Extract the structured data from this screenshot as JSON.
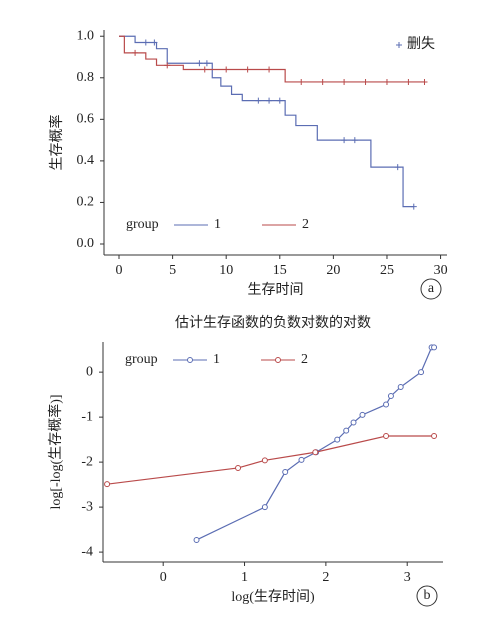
{
  "chart_data": [
    {
      "type": "step",
      "x_label": "生存时间",
      "y_label": "生存概率",
      "annotation": "a",
      "legend_title": "group",
      "censor_label": "删失",
      "xlim": [
        -1.4,
        30.6
      ],
      "ylim": [
        -0.053,
        1.03
      ],
      "xticks": [
        0,
        5,
        10,
        15,
        20,
        25,
        30
      ],
      "yticks": [
        {
          "value": 0,
          "label": "0.0"
        },
        {
          "value": 0.2,
          "label": "0.2"
        },
        {
          "value": 0.4,
          "label": "0.4"
        },
        {
          "value": 0.6,
          "label": "0.6"
        },
        {
          "value": 0.8,
          "label": "0.8"
        },
        {
          "value": 1,
          "label": "1.0"
        }
      ],
      "series": [
        {
          "name": "1",
          "color": "#5b6db3",
          "x": [
            0,
            1.5,
            3.5,
            4.5,
            8.7,
            9.5,
            10.5,
            11.5,
            15.5,
            16.5,
            18.5,
            23.5,
            26.5,
            27.5
          ],
          "values": [
            1.0,
            0.97,
            0.94,
            0.87,
            0.8,
            0.76,
            0.72,
            0.69,
            0.62,
            0.57,
            0.5,
            0.37,
            0.18,
            0.18
          ],
          "censored_x": [
            2.5,
            3.3,
            7.5,
            8.2,
            13,
            14,
            15,
            21,
            22,
            26,
            27.5
          ],
          "censored_y": [
            0.97,
            0.97,
            0.87,
            0.87,
            0.69,
            0.69,
            0.69,
            0.5,
            0.5,
            0.37,
            0.18
          ]
        },
        {
          "name": "2",
          "color": "#b94a4a",
          "x": [
            0,
            0.5,
            2.5,
            3.5,
            6,
            15.5,
            28.5
          ],
          "values": [
            1.0,
            0.92,
            0.89,
            0.86,
            0.84,
            0.78,
            0.78
          ],
          "censored_x": [
            1.5,
            4.5,
            8,
            10,
            12,
            14,
            17,
            19,
            21,
            23,
            25,
            27,
            28.5
          ],
          "censored_y": [
            0.92,
            0.86,
            0.84,
            0.84,
            0.84,
            0.84,
            0.78,
            0.78,
            0.78,
            0.78,
            0.78,
            0.78,
            0.78
          ]
        }
      ]
    },
    {
      "type": "line",
      "title": "估计生存函数的负数对数的对数",
      "x_label": "log(生存时间)",
      "y_label": "log[-log(生存概率)]",
      "annotation": "b",
      "legend_title": "group",
      "xlim": [
        -0.74,
        3.44
      ],
      "ylim": [
        -4.22,
        0.67
      ],
      "xticks": [
        0,
        1,
        2,
        3
      ],
      "yticks": [
        -4,
        -3,
        -2,
        -1,
        0
      ],
      "series": [
        {
          "name": "1",
          "color": "#5b6db3",
          "x": [
            0.41,
            1.25,
            1.5,
            1.7,
            1.88,
            2.14,
            2.25,
            2.34,
            2.45,
            2.74,
            2.8,
            2.92,
            3.17,
            3.3,
            3.33
          ],
          "values": [
            -3.73,
            -3.0,
            -2.22,
            -1.95,
            -1.78,
            -1.5,
            -1.3,
            -1.12,
            -0.95,
            -0.72,
            -0.53,
            -0.33,
            0.0,
            0.55,
            0.55
          ]
        },
        {
          "name": "2",
          "color": "#b94a4a",
          "x": [
            -0.69,
            0.92,
            1.25,
            1.87,
            2.74,
            3.33
          ],
          "values": [
            -2.49,
            -2.13,
            -1.96,
            -1.78,
            -1.42,
            -1.42
          ]
        }
      ]
    }
  ]
}
